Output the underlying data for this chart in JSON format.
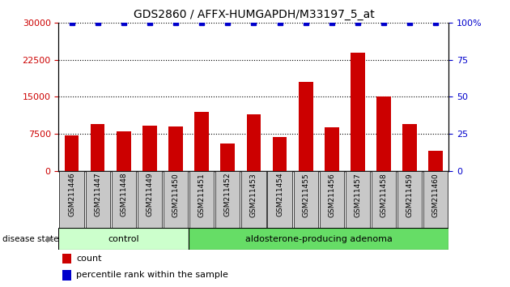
{
  "title": "GDS2860 / AFFX-HUMGAPDH/M33197_5_at",
  "samples": [
    "GSM211446",
    "GSM211447",
    "GSM211448",
    "GSM211449",
    "GSM211450",
    "GSM211451",
    "GSM211452",
    "GSM211453",
    "GSM211454",
    "GSM211455",
    "GSM211456",
    "GSM211457",
    "GSM211458",
    "GSM211459",
    "GSM211460"
  ],
  "counts": [
    7200,
    9500,
    8000,
    9200,
    9000,
    12000,
    5500,
    11500,
    6800,
    18000,
    8800,
    24000,
    15000,
    9500,
    4000
  ],
  "percentiles": [
    100,
    100,
    100,
    100,
    100,
    100,
    100,
    100,
    100,
    100,
    100,
    100,
    100,
    100,
    100
  ],
  "bar_color": "#cc0000",
  "percentile_color": "#0000cc",
  "ylim_left": [
    0,
    30000
  ],
  "ylim_right": [
    0,
    100
  ],
  "yticks_left": [
    0,
    7500,
    15000,
    22500,
    30000
  ],
  "yticks_right": [
    0,
    25,
    50,
    75,
    100
  ],
  "ytick_labels_right": [
    "0",
    "25",
    "50",
    "75",
    "100%"
  ],
  "grid_values": [
    7500,
    15000,
    22500,
    30000
  ],
  "control_samples_count": 5,
  "control_color": "#ccffcc",
  "adenoma_color": "#66dd66",
  "disease_label": "disease state",
  "control_label": "control",
  "adenoma_label": "aldosterone-producing adenoma",
  "legend_count_label": "count",
  "legend_pct_label": "percentile rank within the sample",
  "ticklabel_color_left": "#cc0000",
  "ticklabel_color_right": "#0000cc",
  "bar_width": 0.55,
  "box_color": "#c8c8c8"
}
